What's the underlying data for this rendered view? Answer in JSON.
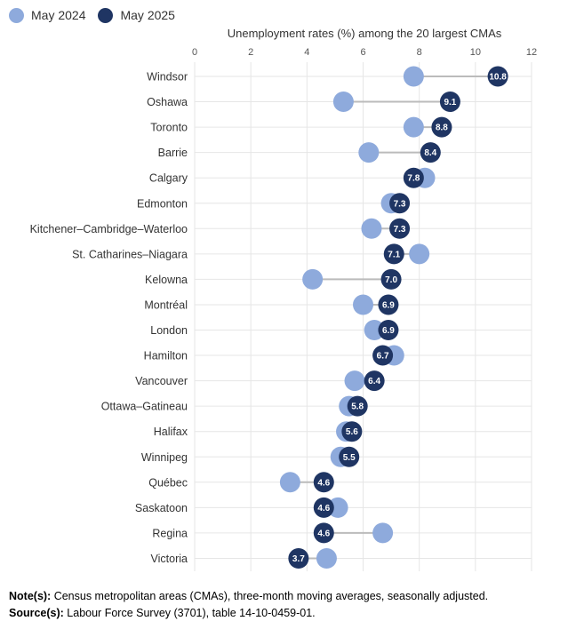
{
  "chart_data": {
    "type": "dumbbell",
    "title": "Unemployment rates (%) among the 20 largest CMAs",
    "xlim": [
      0,
      12
    ],
    "xticks": [
      0,
      2,
      4,
      6,
      8,
      10,
      12
    ],
    "legend_position": "top-left",
    "series": [
      {
        "name": "May 2024",
        "color": "#8eaadc",
        "values": [
          7.8,
          5.3,
          7.8,
          6.2,
          8.2,
          7.0,
          6.3,
          8.0,
          4.2,
          6.0,
          6.4,
          7.1,
          5.7,
          5.5,
          5.4,
          5.2,
          3.4,
          5.1,
          6.7,
          4.7
        ]
      },
      {
        "name": "May 2025",
        "color": "#1f3563",
        "values": [
          10.8,
          9.1,
          8.8,
          8.4,
          7.8,
          7.3,
          7.3,
          7.1,
          7.0,
          6.9,
          6.9,
          6.7,
          6.4,
          5.8,
          5.6,
          5.5,
          4.6,
          4.6,
          4.6,
          3.7
        ]
      }
    ],
    "categories": [
      "Windsor",
      "Oshawa",
      "Toronto",
      "Barrie",
      "Calgary",
      "Edmonton",
      "Kitchener–Cambridge–Waterloo",
      "St. Catharines–Niagara",
      "Kelowna",
      "Montréal",
      "London",
      "Hamilton",
      "Vancouver",
      "Ottawa–Gatineau",
      "Halifax",
      "Winnipeg",
      "Québec",
      "Saskatoon",
      "Regina",
      "Victoria"
    ],
    "value_labels": [
      "10.8",
      "9.1",
      "8.8",
      "8.4",
      "7.8",
      "7.3",
      "7.3",
      "7.1",
      "7.0",
      "6.9",
      "6.9",
      "6.7",
      "6.4",
      "5.8",
      "5.6",
      "5.5",
      "4.6",
      "4.6",
      "4.6",
      "3.7"
    ],
    "connector_color": "#bbbbbb",
    "grid_color": "#e6e6e6"
  },
  "notes": {
    "note_label": "Note(s):",
    "note_text": " Census metropolitan areas (CMAs), three-month moving averages, seasonally adjusted.",
    "source_label": "Source(s):",
    "source_text": " Labour Force Survey (3701), table 14-10-0459-01."
  }
}
